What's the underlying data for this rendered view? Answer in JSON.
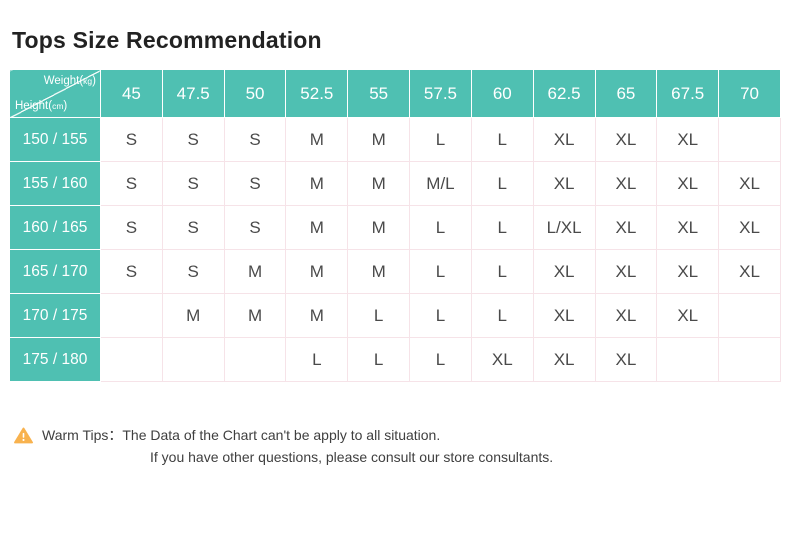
{
  "page": {
    "title": "Tops Size Recommendation"
  },
  "chart_data": {
    "type": "table",
    "title": "Tops Size Recommendation",
    "col_axis": {
      "prefix": "Weight(",
      "unit": "kg",
      "suffix": ")"
    },
    "row_axis": {
      "prefix": "Height(",
      "unit": "cm",
      "suffix": ")"
    },
    "columns": [
      "45",
      "47.5",
      "50",
      "52.5",
      "55",
      "57.5",
      "60",
      "62.5",
      "65",
      "67.5",
      "70"
    ],
    "rows": [
      {
        "height": "150 / 155",
        "cells": [
          "S",
          "S",
          "S",
          "M",
          "M",
          "L",
          "L",
          "XL",
          "XL",
          "XL",
          ""
        ]
      },
      {
        "height": "155 / 160",
        "cells": [
          "S",
          "S",
          "S",
          "M",
          "M",
          "M/L",
          "L",
          "XL",
          "XL",
          "XL",
          "XL"
        ]
      },
      {
        "height": "160 / 165",
        "cells": [
          "S",
          "S",
          "S",
          "M",
          "M",
          "L",
          "L",
          "L/XL",
          "XL",
          "XL",
          "XL"
        ]
      },
      {
        "height": "165 / 170",
        "cells": [
          "S",
          "S",
          "M",
          "M",
          "M",
          "L",
          "L",
          "XL",
          "XL",
          "XL",
          "XL"
        ]
      },
      {
        "height": "170 / 175",
        "cells": [
          "",
          "M",
          "M",
          "M",
          "L",
          "L",
          "L",
          "XL",
          "XL",
          "XL",
          ""
        ]
      },
      {
        "height": "175 / 180",
        "cells": [
          "",
          "",
          "",
          "L",
          "L",
          "L",
          "XL",
          "XL",
          "XL",
          "",
          ""
        ]
      }
    ]
  },
  "tips": {
    "icon": "warning-triangle-icon",
    "label": "Warm Tips：",
    "line1": "The Data of the Chart can't be apply to all situation.",
    "line2": "If you have other questions, please consult our store consultants."
  },
  "colors": {
    "header_bg": "#4FC0B2",
    "size_s_bg": "#FDFEE4",
    "size_m_bg": "#EAFAE3",
    "size_l_bg": "#E3F1FD",
    "size_xl_bg": "#FDE8EF",
    "size_ml_bg": "#EEFBE8",
    "size_lxl_bg": "#E7F4FE",
    "grid_border": "#F6E3E8",
    "title_text": "#222222",
    "cell_text": "#4A4A4A",
    "tips_text": "#3F3F3F",
    "warning_icon": "#F8B24E"
  }
}
